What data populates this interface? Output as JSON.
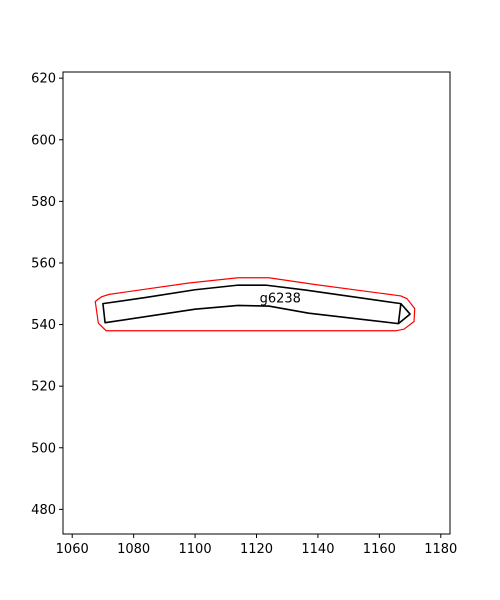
{
  "chart_data": {
    "type": "line",
    "title": "",
    "xlabel": "",
    "ylabel": "",
    "xlim": [
      1057,
      1183
    ],
    "ylim": [
      472,
      622
    ],
    "xticks": [
      1060,
      1080,
      1100,
      1120,
      1140,
      1160,
      1180
    ],
    "yticks": [
      480,
      500,
      520,
      540,
      560,
      580,
      600,
      620
    ],
    "xtick_labels": [
      "1060",
      "1080",
      "1100",
      "1120",
      "1140",
      "1160",
      "1180"
    ],
    "ytick_labels": [
      "480",
      "500",
      "520",
      "540",
      "560",
      "580",
      "600",
      "620"
    ],
    "grid": false,
    "series": [
      {
        "color": "#ff0000",
        "closed": true,
        "x": [
          1069.5,
          1072.0,
          1098.0,
          1114.0,
          1124.0,
          1139.0,
          1167.0,
          1169.0,
          1171.5,
          1171.3,
          1168.0,
          1165.5,
          1071.0,
          1068.5,
          1067.5
        ],
        "y": [
          549.0,
          549.8,
          553.5,
          555.2,
          555.2,
          553.0,
          549.3,
          548.4,
          545.2,
          541.0,
          538.5,
          538.0,
          538.0,
          540.5,
          547.5
        ]
      },
      {
        "color": "#000000",
        "closed": true,
        "x": [
          1070.0,
          1084.0,
          1100.0,
          1114.0,
          1123.0,
          1136.0,
          1167.0,
          1166.2,
          1137.0,
          1124.0,
          1114.0,
          1100.0,
          1070.7
        ],
        "y": [
          546.8,
          548.8,
          551.3,
          552.8,
          552.8,
          551.2,
          546.8,
          540.3,
          543.7,
          546.0,
          546.2,
          545.0,
          540.6
        ]
      },
      {
        "color": "#000000",
        "closed": false,
        "x": [
          1167.0,
          1170.0,
          1166.2
        ],
        "y": [
          546.8,
          543.4,
          540.3
        ]
      }
    ],
    "annotations": [
      {
        "text": "g6238",
        "x": 1121.0,
        "y": 547.2
      }
    ]
  }
}
